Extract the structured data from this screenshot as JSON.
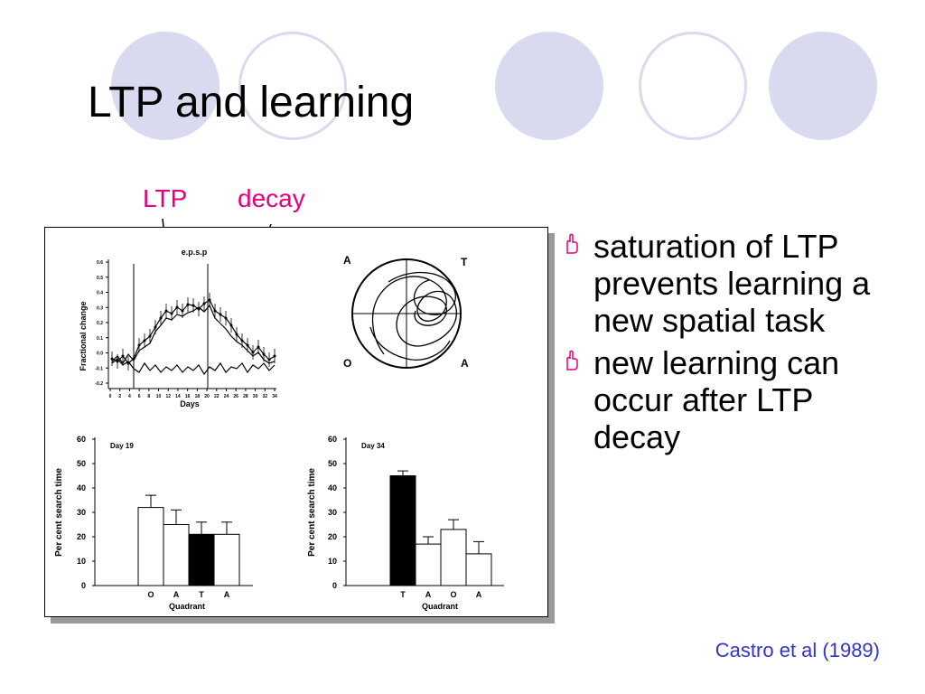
{
  "slide": {
    "title": "LTP and learning",
    "accent_color": "#d9d9f0",
    "annotation_color": "#e4007c",
    "citation_color": "#3333cc"
  },
  "annotations": {
    "ltp": "LTP",
    "decay": "decay"
  },
  "figure": {
    "top_chart": {
      "title": "e.p.s.p",
      "ylabel": "Fractional change",
      "xlabel": "Days",
      "yticks": [
        "0.6",
        "0.5",
        "0.4",
        "0.3",
        "0.2",
        "0.1",
        "0.0",
        "-0.1",
        "-0.2"
      ],
      "xticks": [
        "0",
        "2",
        "4",
        "6",
        "8",
        "10",
        "12",
        "14",
        "16",
        "18",
        "20",
        "22",
        "24",
        "26",
        "28",
        "30",
        "32",
        "34"
      ]
    },
    "maze": {
      "label_top_left": "A",
      "label_top_right": "T",
      "label_bottom_left": "O",
      "label_bottom_right": "A"
    },
    "bar_left": {
      "day_label": "Day 19",
      "ylabel": "Per cent search time",
      "xlabel": "Quadrant",
      "yticks": [
        "60",
        "50",
        "40",
        "30",
        "20",
        "10",
        "0"
      ],
      "categories": [
        "O",
        "A",
        "T",
        "A"
      ],
      "values": [
        32,
        25,
        21,
        21
      ],
      "errors": [
        5,
        6,
        5,
        5
      ],
      "filled": [
        false,
        false,
        true,
        false
      ]
    },
    "bar_right": {
      "day_label": "Day 34",
      "ylabel": "Per cent search time",
      "xlabel": "Quadrant",
      "yticks": [
        "60",
        "50",
        "40",
        "30",
        "20",
        "10",
        "0"
      ],
      "categories": [
        "T",
        "A",
        "O",
        "A"
      ],
      "values": [
        45,
        17,
        23,
        13
      ],
      "errors": [
        2,
        3,
        4,
        5
      ],
      "filled": [
        true,
        false,
        false,
        false
      ]
    }
  },
  "bullets": [
    "saturation of LTP prevents learning a new spatial task",
    "new learning can occur after LTP decay"
  ],
  "citation": "Castro et al (1989)"
}
